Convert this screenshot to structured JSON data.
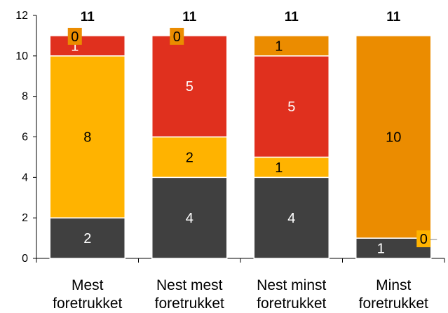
{
  "chart_data": {
    "type": "bar",
    "stacked": true,
    "categories": [
      [
        "Mest",
        "foretrukket"
      ],
      [
        "Nest mest",
        "foretrukket"
      ],
      [
        "Nest minst",
        "foretrukket"
      ],
      [
        "Minst",
        "foretrukket"
      ]
    ],
    "series": [
      {
        "color": "#404040",
        "label_color": "#ffffff",
        "values": [
          2,
          4,
          4,
          1
        ]
      },
      {
        "color": "#FFB300",
        "label_color": "#000000",
        "values": [
          8,
          2,
          1,
          0
        ]
      },
      {
        "color": "#E0301E",
        "label_color": "#ffffff",
        "values": [
          1,
          5,
          5,
          0
        ]
      },
      {
        "color": "#EB8C00",
        "label_color": "#000000",
        "values": [
          0,
          0,
          1,
          10
        ]
      }
    ],
    "totals": [
      11,
      11,
      11,
      11
    ],
    "ylim": [
      0,
      12
    ],
    "yticks": [
      0,
      2,
      4,
      6,
      8,
      10,
      12
    ],
    "grid": false,
    "title": "",
    "xlabel": "",
    "ylabel": ""
  }
}
